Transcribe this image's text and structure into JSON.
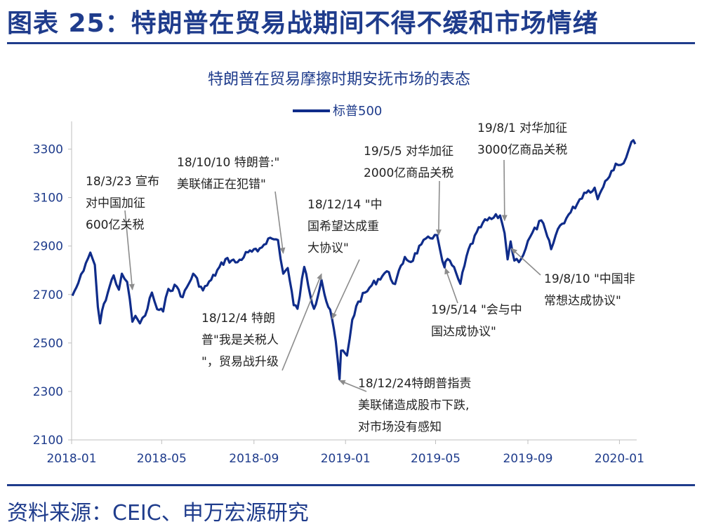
{
  "figure_title": "图表 25：特朗普在贸易战期间不得不缓和市场情绪",
  "source": "资料来源：CEIC、申万宏源研究",
  "colors": {
    "brand": "#1f3c8c",
    "series": "#0f2c8a",
    "arrow": "#8c8c8c",
    "axis": "#bfbfbf"
  },
  "chart_data": {
    "type": "line",
    "title": "特朗普在贸易摩擦时期安抚市场的表态",
    "xlabel": "",
    "ylabel": "",
    "ylim": [
      2100,
      3400
    ],
    "yticks": [
      2100,
      2300,
      2500,
      2700,
      2900,
      3100,
      3300
    ],
    "xticks": [
      "2018-01",
      "2018-05",
      "2018-09",
      "2019-01",
      "2019-05",
      "2019-09",
      "2020-01"
    ],
    "legend": {
      "position": "top",
      "entries": [
        "标普500"
      ]
    },
    "grid": false,
    "series": [
      {
        "name": "标普500",
        "points": [
          [
            "2018-01-02",
            2695
          ],
          [
            "2018-01-10",
            2748
          ],
          [
            "2018-01-17",
            2798
          ],
          [
            "2018-01-26",
            2873
          ],
          [
            "2018-02-01",
            2822
          ],
          [
            "2018-02-05",
            2649
          ],
          [
            "2018-02-08",
            2581
          ],
          [
            "2018-02-13",
            2662
          ],
          [
            "2018-02-26",
            2779
          ],
          [
            "2018-03-05",
            2720
          ],
          [
            "2018-03-09",
            2786
          ],
          [
            "2018-03-16",
            2752
          ],
          [
            "2018-03-23",
            2588
          ],
          [
            "2018-03-27",
            2612
          ],
          [
            "2018-04-02",
            2581
          ],
          [
            "2018-04-09",
            2613
          ],
          [
            "2018-04-18",
            2708
          ],
          [
            "2018-04-25",
            2639
          ],
          [
            "2018-05-03",
            2630
          ],
          [
            "2018-05-10",
            2723
          ],
          [
            "2018-05-21",
            2733
          ],
          [
            "2018-05-29",
            2689
          ],
          [
            "2018-06-12",
            2786
          ],
          [
            "2018-06-25",
            2717
          ],
          [
            "2018-07-06",
            2760
          ],
          [
            "2018-07-25",
            2846
          ],
          [
            "2018-08-10",
            2833
          ],
          [
            "2018-08-24",
            2874
          ],
          [
            "2018-09-06",
            2878
          ],
          [
            "2018-09-20",
            2931
          ],
          [
            "2018-10-03",
            2925
          ],
          [
            "2018-10-10",
            2786
          ],
          [
            "2018-10-16",
            2809
          ],
          [
            "2018-10-24",
            2656
          ],
          [
            "2018-10-29",
            2641
          ],
          [
            "2018-11-07",
            2814
          ],
          [
            "2018-11-20",
            2641
          ],
          [
            "2018-11-30",
            2760
          ],
          [
            "2018-12-04",
            2700
          ],
          [
            "2018-12-14",
            2600
          ],
          [
            "2018-12-19",
            2507
          ],
          [
            "2018-12-24",
            2351
          ],
          [
            "2018-12-26",
            2468
          ],
          [
            "2019-01-03",
            2448
          ],
          [
            "2019-01-10",
            2596
          ],
          [
            "2019-01-18",
            2671
          ],
          [
            "2019-02-05",
            2738
          ],
          [
            "2019-02-25",
            2796
          ],
          [
            "2019-03-08",
            2743
          ],
          [
            "2019-03-21",
            2855
          ],
          [
            "2019-03-29",
            2834
          ],
          [
            "2019-04-12",
            2907
          ],
          [
            "2019-04-30",
            2946
          ],
          [
            "2019-05-03",
            2945
          ],
          [
            "2019-05-07",
            2884
          ],
          [
            "2019-05-13",
            2812
          ],
          [
            "2019-05-14",
            2835
          ],
          [
            "2019-05-20",
            2840
          ],
          [
            "2019-06-03",
            2744
          ],
          [
            "2019-06-14",
            2887
          ],
          [
            "2019-07-03",
            2996
          ],
          [
            "2019-07-26",
            3026
          ],
          [
            "2019-08-01",
            2953
          ],
          [
            "2019-08-05",
            2845
          ],
          [
            "2019-08-09",
            2919
          ],
          [
            "2019-08-14",
            2840
          ],
          [
            "2019-08-23",
            2847
          ],
          [
            "2019-09-04",
            2938
          ],
          [
            "2019-09-19",
            3006
          ],
          [
            "2019-10-02",
            2887
          ],
          [
            "2019-10-11",
            2970
          ],
          [
            "2019-10-28",
            3039
          ],
          [
            "2019-11-15",
            3120
          ],
          [
            "2019-11-29",
            3141
          ],
          [
            "2019-12-03",
            3093
          ],
          [
            "2019-12-13",
            3168
          ],
          [
            "2019-12-27",
            3240
          ],
          [
            "2020-01-03",
            3235
          ],
          [
            "2020-01-10",
            3265
          ],
          [
            "2020-01-17",
            3330
          ],
          [
            "2020-01-22",
            3321
          ]
        ]
      }
    ],
    "annotations": [
      {
        "lines": [
          "18/3/23 宣布",
          "对中国加征",
          "600亿关税"
        ],
        "date": "2018-03-23",
        "value": 2720
      },
      {
        "lines": [
          "18/10/10 特朗普:\"",
          "美联储正在犯错\""
        ],
        "date": "2018-10-10",
        "value": 2870
      },
      {
        "lines": [
          "18/12/4 特朗",
          "普\"我是关税人",
          "\"，贸易战升级"
        ],
        "date": "2018-11-30",
        "value": 2785
      },
      {
        "lines": [
          "18/12/14 \"中",
          "国希望达成重",
          "大协议\""
        ],
        "date": "2018-12-14",
        "value": 2600
      },
      {
        "lines": [
          "18/12/24特朗普指责",
          "美联储造成股市下跌,",
          "对市场没有感知"
        ],
        "date": "2018-12-24",
        "value": 2345
      },
      {
        "lines": [
          "19/5/5 对华加征",
          "2000亿商品关税"
        ],
        "date": "2019-05-05",
        "value": 2945
      },
      {
        "lines": [
          "19/5/14 \"会与中",
          "国达成协议\""
        ],
        "date": "2019-05-14",
        "value": 2808
      },
      {
        "lines": [
          "19/8/1 对华加征",
          "3000亿商品关税"
        ],
        "date": "2019-08-01",
        "value": 3005
      },
      {
        "lines": [
          "19/8/10 \"中国非",
          "常想达成协议\""
        ],
        "date": "2019-08-10",
        "value": 2890
      }
    ]
  }
}
